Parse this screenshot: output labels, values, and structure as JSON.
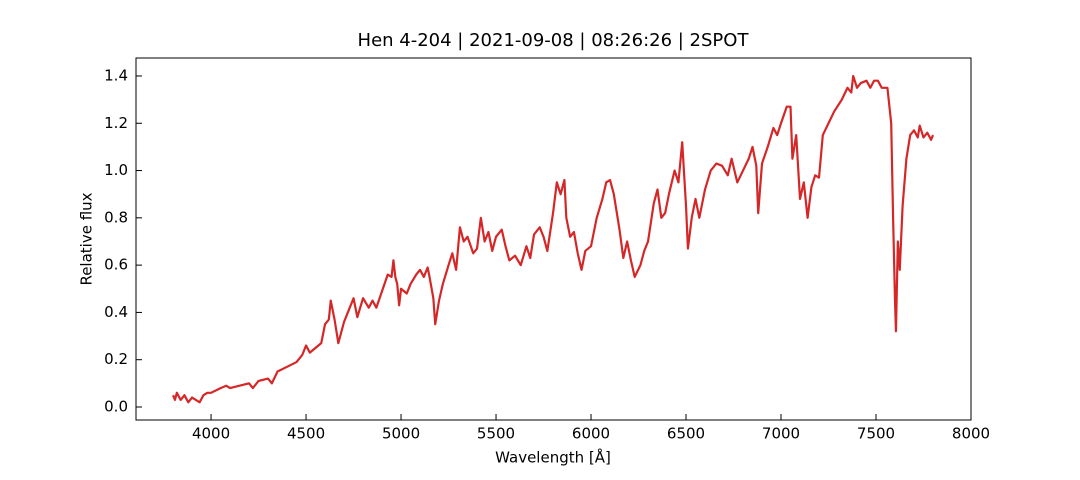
{
  "chart_data": {
    "type": "line",
    "title": "Hen 4-204 | 2021-09-08 | 08:26:26 | 2SPOT",
    "x_label": "Wavelength [Å]",
    "y_label": "Relative flux",
    "color": "#d62728",
    "xlim": [
      3605,
      8000
    ],
    "ylim": [
      -0.055,
      1.476
    ],
    "xticks": [
      4000,
      4500,
      5000,
      5500,
      6000,
      6500,
      7000,
      7500,
      8000
    ],
    "yticks": [
      {
        "value": 0,
        "label": "0.0"
      },
      0.2,
      0.4,
      0.6,
      0.8,
      {
        "value": 1,
        "label": "1.0"
      },
      1.2,
      1.4
    ],
    "x": [
      3800,
      3810,
      3820,
      3840,
      3860,
      3880,
      3900,
      3920,
      3940,
      3960,
      3980,
      4000,
      4050,
      4080,
      4100,
      4150,
      4200,
      4220,
      4250,
      4300,
      4320,
      4350,
      4400,
      4450,
      4480,
      4500,
      4520,
      4550,
      4580,
      4600,
      4620,
      4630,
      4650,
      4670,
      4700,
      4720,
      4750,
      4770,
      4800,
      4830,
      4850,
      4870,
      4900,
      4930,
      4950,
      4960,
      4970,
      4980,
      4990,
      5000,
      5030,
      5050,
      5080,
      5100,
      5120,
      5140,
      5150,
      5170,
      5180,
      5200,
      5220,
      5250,
      5270,
      5290,
      5310,
      5330,
      5350,
      5380,
      5400,
      5420,
      5440,
      5460,
      5480,
      5500,
      5530,
      5550,
      5570,
      5600,
      5630,
      5660,
      5680,
      5700,
      5730,
      5750,
      5770,
      5800,
      5820,
      5840,
      5860,
      5870,
      5890,
      5910,
      5930,
      5950,
      5970,
      6000,
      6030,
      6060,
      6080,
      6100,
      6120,
      6150,
      6170,
      6190,
      6210,
      6230,
      6260,
      6280,
      6300,
      6330,
      6350,
      6370,
      6390,
      6410,
      6440,
      6460,
      6480,
      6500,
      6510,
      6530,
      6550,
      6570,
      6600,
      6630,
      6660,
      6690,
      6720,
      6740,
      6770,
      6800,
      6830,
      6850,
      6870,
      6880,
      6900,
      6930,
      6960,
      6980,
      7000,
      7030,
      7050,
      7060,
      7080,
      7100,
      7120,
      7140,
      7160,
      7180,
      7200,
      7220,
      7250,
      7280,
      7320,
      7350,
      7370,
      7380,
      7400,
      7420,
      7450,
      7470,
      7490,
      7510,
      7530,
      7560,
      7580,
      7590,
      7600,
      7605,
      7615,
      7625,
      7640,
      7660,
      7680,
      7700,
      7720,
      7730,
      7750,
      7770,
      7790,
      7800
    ],
    "values": [
      0.05,
      0.03,
      0.06,
      0.03,
      0.05,
      0.02,
      0.04,
      0.03,
      0.02,
      0.05,
      0.06,
      0.06,
      0.08,
      0.09,
      0.08,
      0.09,
      0.1,
      0.08,
      0.11,
      0.12,
      0.1,
      0.15,
      0.17,
      0.19,
      0.22,
      0.26,
      0.23,
      0.25,
      0.27,
      0.35,
      0.37,
      0.45,
      0.37,
      0.27,
      0.36,
      0.4,
      0.46,
      0.38,
      0.46,
      0.42,
      0.45,
      0.42,
      0.49,
      0.56,
      0.55,
      0.62,
      0.55,
      0.52,
      0.43,
      0.5,
      0.48,
      0.52,
      0.56,
      0.58,
      0.55,
      0.59,
      0.55,
      0.46,
      0.35,
      0.45,
      0.52,
      0.6,
      0.65,
      0.58,
      0.76,
      0.7,
      0.72,
      0.65,
      0.67,
      0.8,
      0.7,
      0.74,
      0.66,
      0.72,
      0.75,
      0.68,
      0.62,
      0.64,
      0.6,
      0.68,
      0.63,
      0.73,
      0.76,
      0.72,
      0.66,
      0.82,
      0.95,
      0.9,
      0.96,
      0.8,
      0.72,
      0.74,
      0.65,
      0.58,
      0.66,
      0.68,
      0.8,
      0.88,
      0.95,
      0.96,
      0.9,
      0.75,
      0.63,
      0.7,
      0.62,
      0.55,
      0.6,
      0.66,
      0.7,
      0.86,
      0.92,
      0.8,
      0.82,
      0.9,
      1.0,
      0.95,
      1.12,
      0.85,
      0.67,
      0.8,
      0.88,
      0.8,
      0.92,
      1.0,
      1.03,
      1.02,
      0.98,
      1.05,
      0.95,
      1.0,
      1.05,
      1.1,
      1.02,
      0.82,
      1.03,
      1.1,
      1.18,
      1.15,
      1.2,
      1.27,
      1.27,
      1.05,
      1.15,
      0.88,
      0.95,
      0.8,
      0.93,
      0.98,
      0.97,
      1.15,
      1.2,
      1.25,
      1.3,
      1.35,
      1.33,
      1.4,
      1.35,
      1.37,
      1.38,
      1.35,
      1.38,
      1.38,
      1.35,
      1.35,
      1.2,
      0.8,
      0.45,
      0.32,
      0.7,
      0.58,
      0.85,
      1.05,
      1.15,
      1.17,
      1.14,
      1.19,
      1.14,
      1.16,
      1.13,
      1.15
    ]
  }
}
